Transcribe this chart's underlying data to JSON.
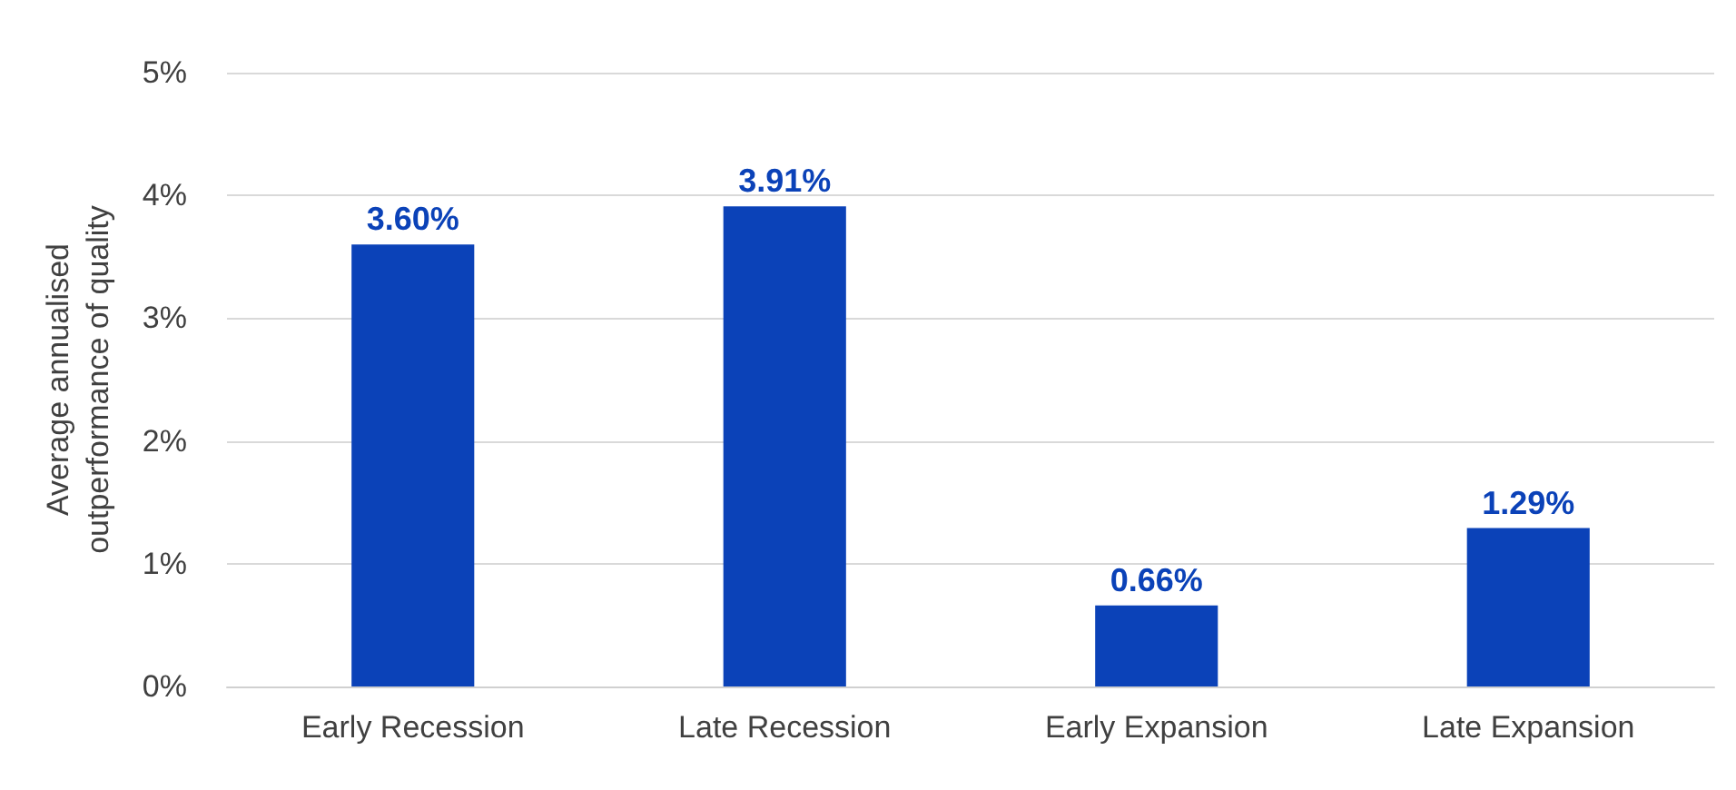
{
  "chart_data": {
    "type": "bar",
    "ylabel": "Average annualised\noutperformance of quality",
    "categories": [
      "Early Recession",
      "Late Recession",
      "Early Expansion",
      "Late Expansion"
    ],
    "values": [
      3.6,
      3.91,
      0.66,
      1.29
    ],
    "value_labels": [
      "3.60%",
      "3.91%",
      "0.66%",
      "1.29%"
    ],
    "color": "#0b42b8",
    "ylim": [
      0,
      5
    ],
    "yticks": [
      {
        "value": 0,
        "label": "0%"
      },
      {
        "value": 1,
        "label": "1%"
      },
      {
        "value": 2,
        "label": "2%"
      },
      {
        "value": 3,
        "label": "3%"
      },
      {
        "value": 4,
        "label": "4%"
      },
      {
        "value": 5,
        "label": "5%"
      }
    ],
    "grid": "y"
  }
}
